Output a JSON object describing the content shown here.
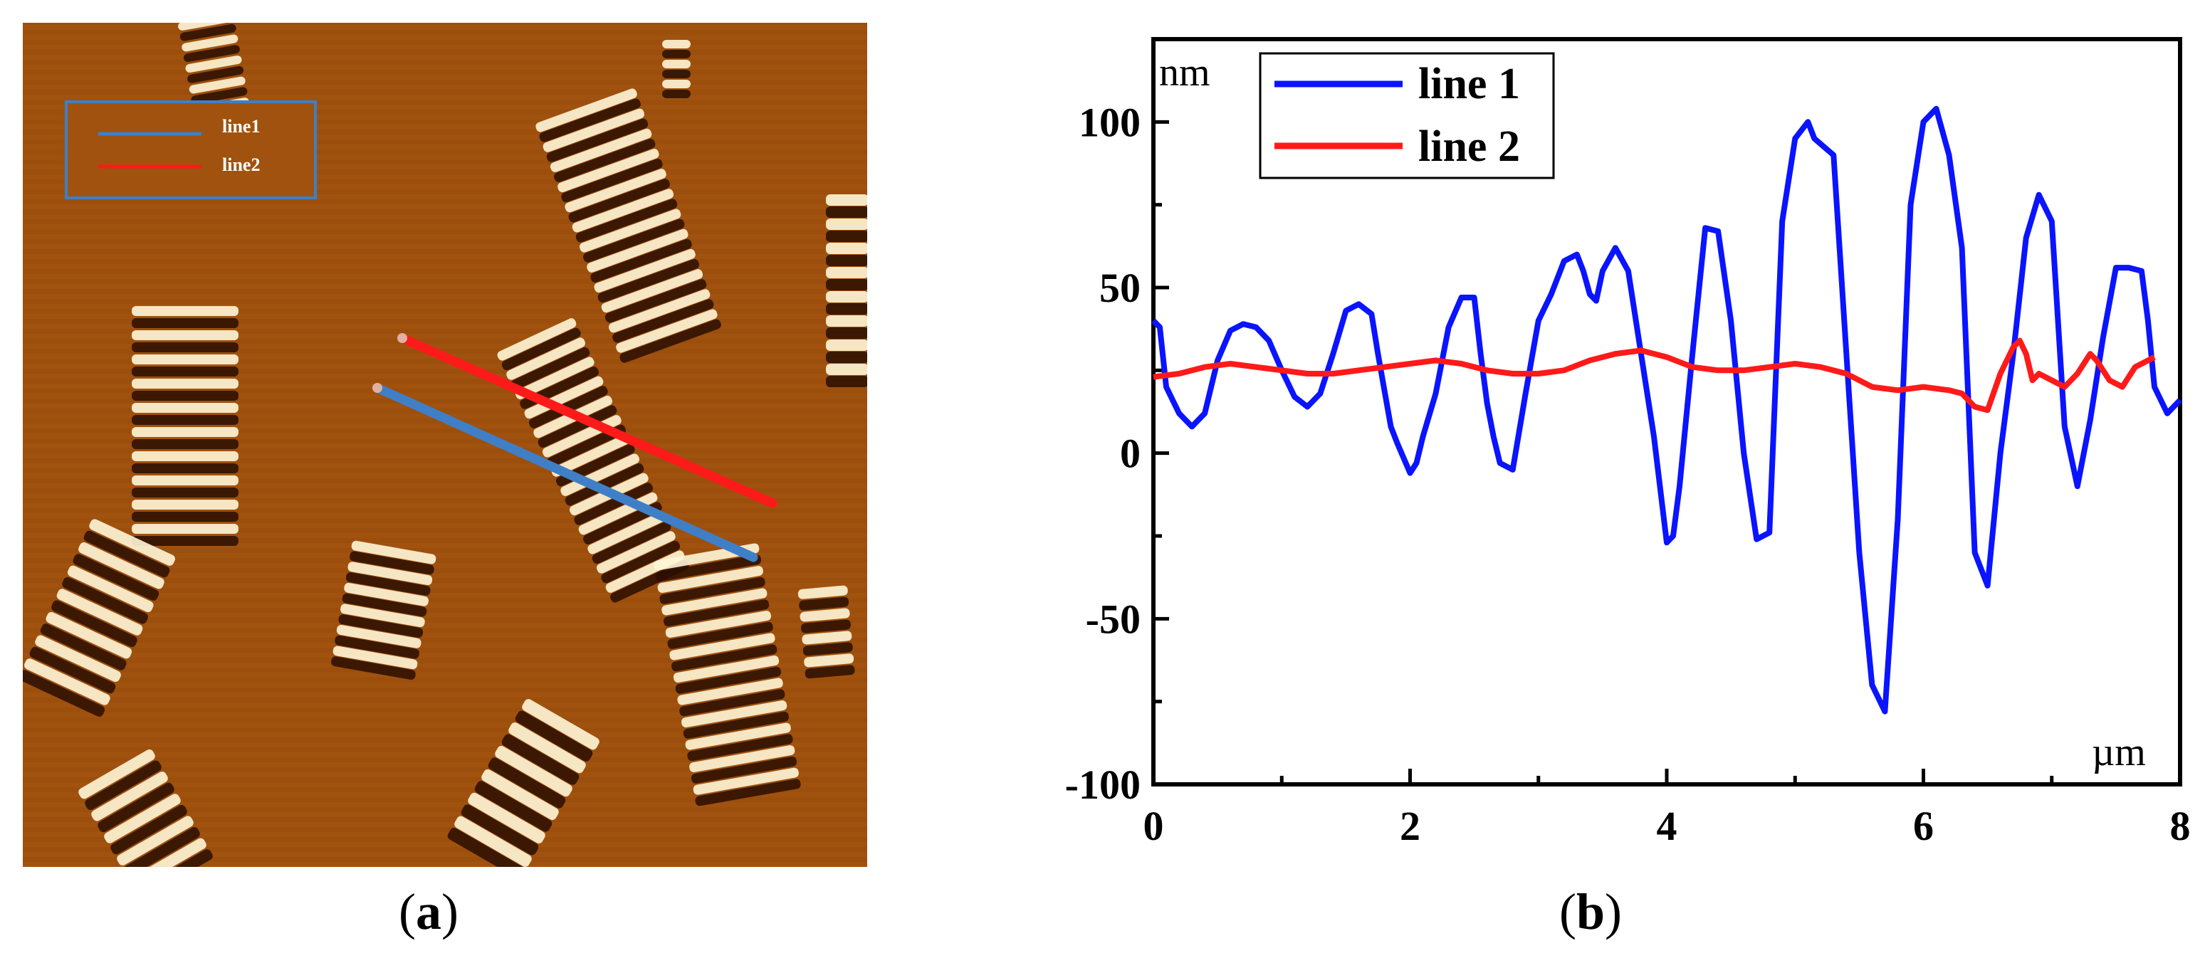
{
  "panel_a": {
    "caption_letter": "a",
    "legend": [
      "line1",
      "line2"
    ],
    "colors": {
      "line1": "#3f7fc7",
      "line2": "#ff1a1a",
      "background": "#a0520e"
    }
  },
  "panel_b": {
    "caption_letter": "b"
  },
  "chart_data": {
    "type": "line",
    "title": "",
    "xlabel": "µm",
    "ylabel": "nm",
    "xlim": [
      0,
      8
    ],
    "ylim": [
      -100,
      125
    ],
    "xticks": [
      0,
      2,
      4,
      6,
      8
    ],
    "yticks": [
      -100,
      -50,
      0,
      50,
      100
    ],
    "legend_position": "top-left",
    "series": [
      {
        "name": "line 1",
        "color": "#0a14ff",
        "x": [
          0,
          0.05,
          0.1,
          0.2,
          0.3,
          0.4,
          0.5,
          0.6,
          0.7,
          0.8,
          0.9,
          1.0,
          1.1,
          1.2,
          1.3,
          1.4,
          1.5,
          1.6,
          1.7,
          1.75,
          1.85,
          1.9,
          2.0,
          2.05,
          2.1,
          2.2,
          2.3,
          2.4,
          2.5,
          2.55,
          2.6,
          2.65,
          2.7,
          2.8,
          2.9,
          3.0,
          3.1,
          3.2,
          3.3,
          3.35,
          3.4,
          3.45,
          3.5,
          3.6,
          3.7,
          3.8,
          3.9,
          4.0,
          4.05,
          4.1,
          4.2,
          4.3,
          4.4,
          4.5,
          4.6,
          4.7,
          4.8,
          4.9,
          5.0,
          5.1,
          5.15,
          5.3,
          5.4,
          5.5,
          5.6,
          5.7,
          5.8,
          5.9,
          6.0,
          6.1,
          6.2,
          6.3,
          6.4,
          6.5,
          6.6,
          6.7,
          6.8,
          6.9,
          7.0,
          7.1,
          7.2,
          7.3,
          7.4,
          7.5,
          7.6,
          7.7,
          7.75,
          7.8,
          7.9,
          8.0
        ],
        "y": [
          40,
          38,
          20,
          12,
          8,
          12,
          28,
          37,
          39,
          38,
          34,
          25,
          17,
          14,
          18,
          30,
          43,
          45,
          42,
          30,
          8,
          3,
          -6,
          -3,
          5,
          18,
          38,
          47,
          47,
          30,
          15,
          5,
          -3,
          -5,
          18,
          40,
          48,
          58,
          60,
          55,
          48,
          46,
          55,
          62,
          55,
          30,
          5,
          -27,
          -25,
          -10,
          30,
          68,
          67,
          40,
          0,
          -26,
          -24,
          70,
          95,
          100,
          95,
          90,
          30,
          -30,
          -70,
          -78,
          -20,
          75,
          100,
          104,
          90,
          62,
          -30,
          -40,
          0,
          30,
          65,
          78,
          70,
          8,
          -10,
          10,
          35,
          56,
          56,
          55,
          40,
          20,
          12,
          16
        ]
      },
      {
        "name": "line 2",
        "color": "#ff1a1a",
        "x": [
          0,
          0.2,
          0.4,
          0.6,
          0.8,
          1.0,
          1.2,
          1.4,
          1.6,
          1.8,
          2.0,
          2.2,
          2.4,
          2.6,
          2.8,
          3.0,
          3.2,
          3.4,
          3.6,
          3.8,
          4.0,
          4.2,
          4.4,
          4.6,
          4.8,
          5.0,
          5.2,
          5.4,
          5.6,
          5.8,
          6.0,
          6.2,
          6.3,
          6.4,
          6.5,
          6.6,
          6.7,
          6.75,
          6.8,
          6.85,
          6.9,
          7.0,
          7.1,
          7.2,
          7.3,
          7.35,
          7.45,
          7.55,
          7.65,
          7.8
        ],
        "y": [
          23,
          24,
          26,
          27,
          26,
          25,
          24,
          24,
          25,
          26,
          27,
          28,
          27,
          25,
          24,
          24,
          25,
          28,
          30,
          31,
          29,
          26,
          25,
          25,
          26,
          27,
          26,
          24,
          20,
          19,
          20,
          19,
          18,
          14,
          13,
          24,
          32,
          34,
          30,
          22,
          24,
          22,
          20,
          24,
          30,
          28,
          22,
          20,
          26,
          29
        ]
      }
    ]
  }
}
